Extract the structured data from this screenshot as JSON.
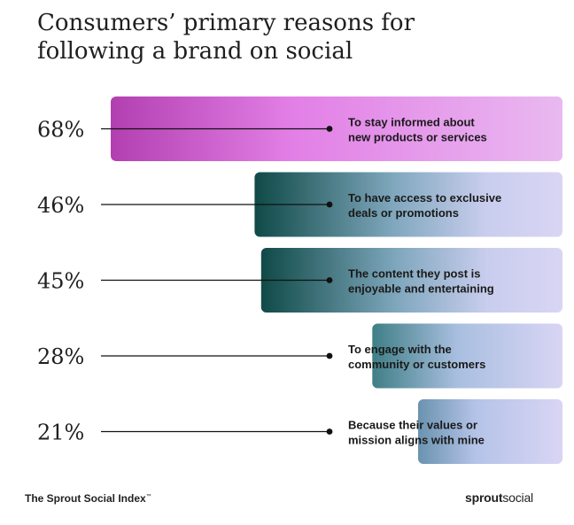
{
  "title_lines": [
    "Consumers’ primary reasons for",
    "following a brand on social"
  ],
  "footer": {
    "source": "The Sprout Social Index",
    "trademark": "™",
    "brand_bold": "sprout",
    "brand_light": "social"
  },
  "colors": {
    "bar1_start": "#b23fb0",
    "bar1_end": "#e9b9f0",
    "teal_dark": "#0f4a47",
    "lavender": "#d9d5f4",
    "ink": "#1f1f1f"
  },
  "chart_data": {
    "type": "bar",
    "orientation": "horizontal",
    "title": "Consumers’ primary reasons for following a brand on social",
    "categories": [
      "To stay informed about new products or services",
      "To have access to exclusive deals or promotions",
      "The content they post is enjoyable and entertaining",
      "To engage with the community or customers",
      "Because their values or mission aligns with mine"
    ],
    "category_lines": [
      [
        "To stay informed about",
        "new products or services"
      ],
      [
        "To have access to exclusive",
        "deals or promotions"
      ],
      [
        "The content they post is",
        "enjoyable and entertaining"
      ],
      [
        "To engage with the",
        "community or customers"
      ],
      [
        "Because their values or",
        "mission aligns with mine"
      ]
    ],
    "values": [
      68,
      46,
      45,
      28,
      21
    ],
    "value_labels": [
      "68%",
      "46%",
      "45%",
      "28%",
      "21%"
    ],
    "unit": "%",
    "grid": false,
    "legend": "none"
  }
}
